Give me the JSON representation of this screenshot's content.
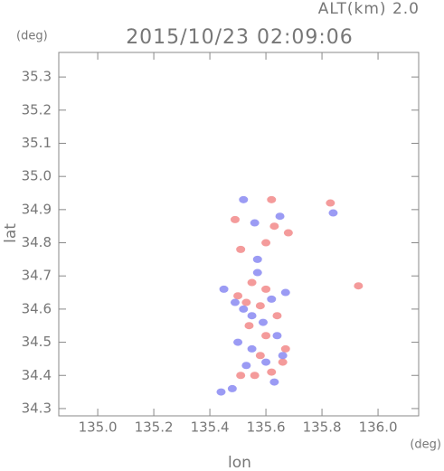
{
  "chart_data": {
    "type": "scatter",
    "title": "2015/10/23 02:09:06",
    "subtitle": "ALT(km) 2.0",
    "y_unit": "(deg)",
    "x_unit": "(deg)",
    "xlabel": "lon",
    "ylabel": "lat",
    "xlim": [
      134.861,
      136.145
    ],
    "ylim": [
      34.278,
      35.374
    ],
    "xticks": [
      {
        "value": 135,
        "label": "135.0"
      },
      135.2,
      135.4,
      135.6,
      135.8,
      {
        "value": 136,
        "label": "136.0"
      }
    ],
    "yticks": [
      34.3,
      34.4,
      34.5,
      34.6,
      34.7,
      34.8,
      34.9,
      {
        "value": 35,
        "label": "35.0"
      },
      35.1,
      35.2,
      35.3
    ],
    "series": [
      {
        "color": "#f07a7a",
        "x": [
          135.62,
          135.49,
          135.6,
          135.51,
          135.63,
          135.93,
          135.55,
          135.6,
          135.5,
          135.58,
          135.64,
          135.54,
          135.6,
          135.58,
          135.66,
          135.62,
          135.56,
          135.51,
          135.67,
          135.53,
          135.68,
          135.83
        ],
        "y": [
          34.93,
          34.87,
          34.8,
          34.78,
          34.85,
          34.67,
          34.68,
          34.66,
          34.64,
          34.61,
          34.58,
          34.55,
          34.52,
          34.46,
          34.44,
          34.41,
          34.4,
          34.4,
          34.48,
          34.62,
          34.83,
          34.92
        ]
      },
      {
        "color": "#7a7af0",
        "x": [
          135.52,
          135.56,
          135.65,
          135.45,
          135.49,
          135.57,
          135.62,
          135.67,
          135.55,
          135.52,
          135.59,
          135.64,
          135.5,
          135.55,
          135.6,
          135.53,
          135.48,
          135.44,
          135.63,
          135.66,
          135.57,
          135.84
        ],
        "y": [
          34.93,
          34.86,
          34.88,
          34.66,
          34.62,
          34.71,
          34.63,
          34.65,
          34.58,
          34.6,
          34.56,
          34.52,
          34.5,
          34.48,
          34.44,
          34.43,
          34.36,
          34.35,
          34.38,
          34.46,
          34.75,
          34.89
        ]
      }
    ]
  }
}
